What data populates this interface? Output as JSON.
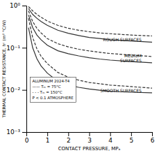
{
  "chart_data": {
    "type": "line",
    "xlabel": "CONTACT PRESSURE, MPₐ",
    "ylabel": "THERMAL CONTACT RESISTANCE, hᶜ (m² °C/W)",
    "log": "y",
    "grid": false,
    "xlim": [
      0,
      6
    ],
    "ylim": [
      0.001,
      1.0
    ],
    "xticks": [
      0,
      1,
      2,
      3,
      4,
      5,
      6
    ],
    "yticks": [
      {
        "value": 0.001,
        "label": "10⁻³"
      },
      {
        "value": 0.01,
        "label": "10⁻²"
      },
      {
        "value": 0.1,
        "label": "10⁻¹"
      },
      {
        "value": 1,
        "label": "10⁰"
      }
    ],
    "series": [
      {
        "color": "#333333",
        "line_style": "solid",
        "x": [
          0.1,
          0.3,
          0.5,
          0.7,
          1.0,
          1.5,
          2.0,
          2.5,
          3.0,
          3.5,
          4.0,
          5.0,
          6.0
        ],
        "values": [
          0.85,
          0.62,
          0.5,
          0.42,
          0.34,
          0.26,
          0.22,
          0.195,
          0.175,
          0.165,
          0.155,
          0.145,
          0.135
        ]
      },
      {
        "color": "#333333",
        "line_style": "dashed",
        "x": [
          0.1,
          0.3,
          0.5,
          0.7,
          1.0,
          1.5,
          2.0,
          2.5,
          3.0,
          3.5,
          4.0,
          5.0,
          6.0
        ],
        "values": [
          0.95,
          0.75,
          0.62,
          0.53,
          0.43,
          0.34,
          0.29,
          0.26,
          0.24,
          0.225,
          0.215,
          0.2,
          0.19
        ]
      },
      {
        "color": "#333333",
        "line_style": "solid",
        "x": [
          0.1,
          0.3,
          0.5,
          0.7,
          1.0,
          1.5,
          2.0,
          2.5,
          3.0,
          3.5,
          4.0,
          5.0,
          6.0
        ],
        "values": [
          0.6,
          0.3,
          0.2,
          0.155,
          0.115,
          0.085,
          0.072,
          0.064,
          0.058,
          0.054,
          0.051,
          0.047,
          0.044
        ]
      },
      {
        "color": "#333333",
        "line_style": "dashed",
        "x": [
          0.1,
          0.3,
          0.5,
          0.7,
          1.0,
          1.5,
          2.0,
          2.5,
          3.0,
          3.5,
          4.0,
          5.0,
          6.0
        ],
        "values": [
          0.75,
          0.42,
          0.29,
          0.225,
          0.165,
          0.125,
          0.105,
          0.092,
          0.084,
          0.078,
          0.073,
          0.067,
          0.062
        ]
      },
      {
        "color": "#333333",
        "line_style": "solid",
        "x": [
          0.1,
          0.3,
          0.5,
          0.7,
          1.0,
          1.5,
          2.0,
          2.5,
          3.0,
          3.5,
          4.0,
          5.0,
          6.0
        ],
        "values": [
          0.3,
          0.1,
          0.055,
          0.037,
          0.025,
          0.016,
          0.013,
          0.0115,
          0.0105,
          0.0098,
          0.0093,
          0.0088,
          0.0085
        ]
      },
      {
        "color": "#333333",
        "line_style": "dashed",
        "x": [
          0.1,
          0.3,
          0.5,
          0.7,
          1.0,
          1.5,
          2.0,
          2.5,
          3.0,
          3.5,
          4.0,
          5.0,
          6.0
        ],
        "values": [
          0.5,
          0.175,
          0.095,
          0.063,
          0.042,
          0.026,
          0.02,
          0.017,
          0.015,
          0.014,
          0.013,
          0.012,
          0.011
        ]
      }
    ],
    "annotations": [
      {
        "text": "ROUGH SURFACES",
        "x": 5.5,
        "y": 0.155
      },
      {
        "text": "MEDIUM\nSURFACES",
        "x": 5.5,
        "y": 0.055
      },
      {
        "text": "SMOOTH SURFACES",
        "x": 5.5,
        "y": 0.0095
      }
    ],
    "text_box": {
      "text": "ALUMINUM 2024-T4\n—— Tₘ = 75°C\n- - -  Tₘ = 150°C\nP < 0.1 ATMOSPHERE",
      "x": 0.18,
      "y": 0.005
    }
  }
}
